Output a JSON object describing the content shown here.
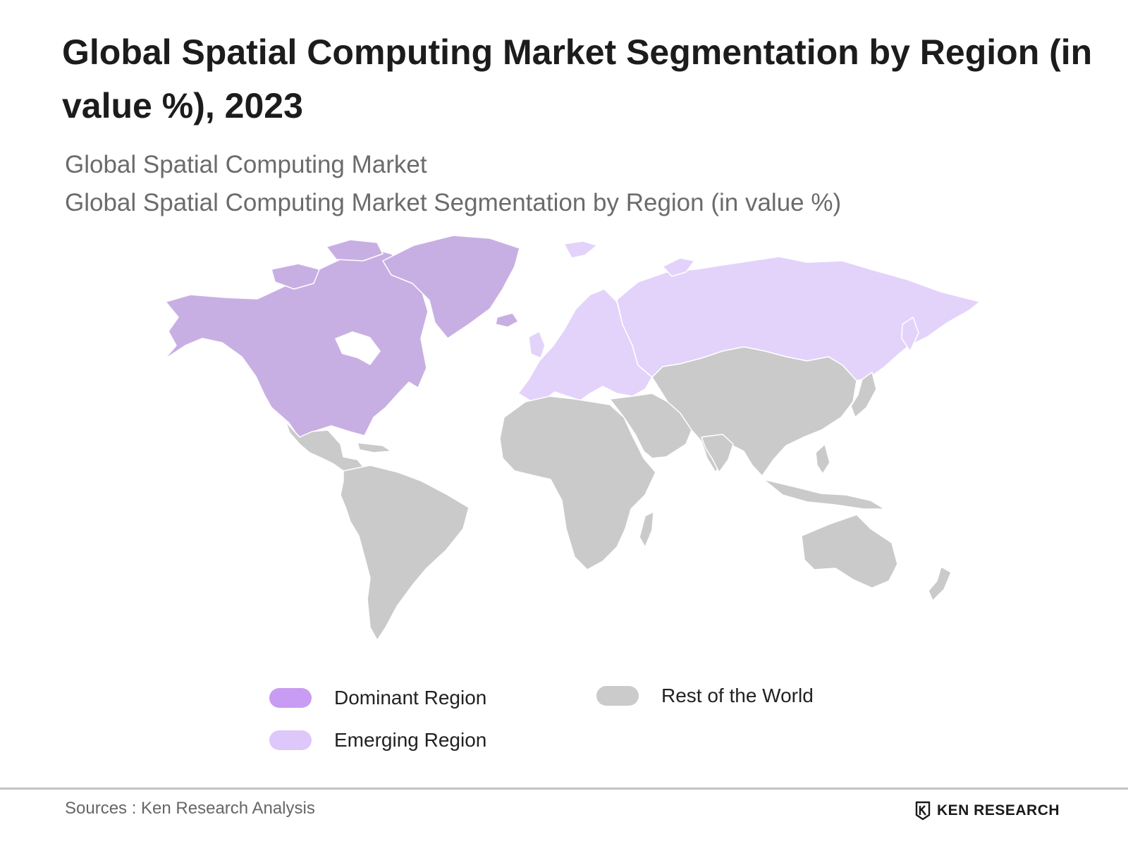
{
  "title_lines": [
    "Global Spatial Computing Market Segmentation by Region (in",
    "value %), 2023"
  ],
  "subtitle_1": "Global Spatial Computing Market",
  "subtitle_2": "Global Spatial Computing Market Segmentation by Region (in value %)",
  "colors": {
    "dominant_map": "#c8afe3",
    "emerging_map": "#e3d3fb",
    "rest_map": "#cacaca",
    "dominant_legend": "#c89cf2",
    "emerging_legend": "#ddc7fb",
    "rest_legend": "#cbcbcb",
    "border": "#ffffff"
  },
  "legend": {
    "dominant": "Dominant Region",
    "emerging": "Emerging Region",
    "rest": "Rest of the World"
  },
  "regions": {
    "dominant": [
      "North America",
      "Greenland"
    ],
    "emerging": [
      "Europe",
      "Russia"
    ],
    "rest": [
      "Latin America",
      "Africa",
      "Middle East",
      "Asia",
      "Oceania"
    ]
  },
  "source": "Sources : Ken Research Analysis",
  "brand": "KEN RESEARCH"
}
